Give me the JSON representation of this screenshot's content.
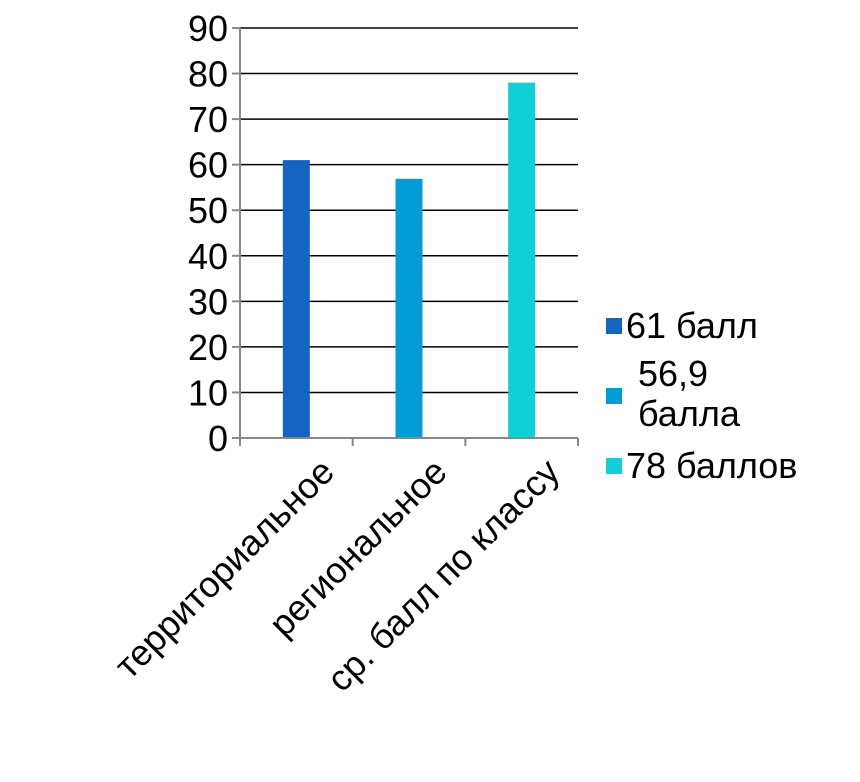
{
  "chart_data": {
    "type": "bar",
    "categories": [
      "территориальное",
      "региональное",
      "ср. балл по классу"
    ],
    "values": [
      61,
      56.9,
      78
    ],
    "colors": [
      "#1565C0",
      "#039BD5",
      "#12CED6"
    ],
    "ylim": [
      0,
      90
    ],
    "yticks": [
      "0",
      "10",
      "20",
      "30",
      "40",
      "50",
      "60",
      "70",
      "80",
      "90"
    ],
    "legend": [
      "61 балл",
      "56,9 балла",
      "78 баллов"
    ],
    "legend_position": "right",
    "grid": true,
    "title": "",
    "xlabel": "",
    "ylabel": ""
  }
}
